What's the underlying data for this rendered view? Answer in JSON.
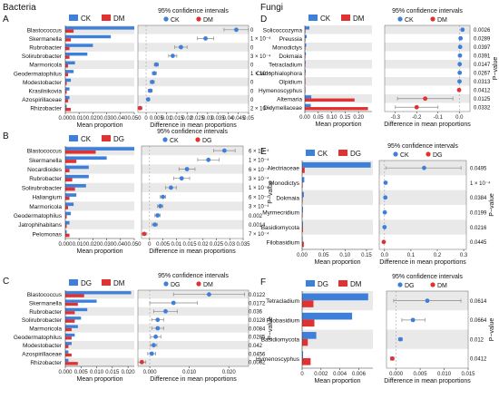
{
  "section_titles": {
    "bacteria": "Bacteria",
    "fungi": "Fungi"
  },
  "colors": {
    "blue": "#3d7fd9",
    "red": "#e03232",
    "stripe": "#e9e9e9",
    "ci": "#888888"
  },
  "chart_data": [
    {
      "id": "A",
      "type": "bar",
      "legend": [
        {
          "name": "CK",
          "color": "#3d7fd9"
        },
        {
          "name": "DM",
          "color": "#e03232"
        }
      ],
      "ci_title": "95% confidence intervals",
      "categories": [
        "Blastococcus",
        "Skermanella",
        "Rubrobacter",
        "Solirubrobacter",
        "Marmoricola",
        "Geodermatophilus",
        "Modestobacter",
        "Krasilnikovia",
        "Azospirillaceae",
        "Rhizobacter"
      ],
      "series": [
        {
          "name": "CK",
          "values": [
            0.05,
            0.033,
            0.02,
            0.016,
            0.007,
            0.006,
            0.004,
            0.003,
            0.003,
            0.001
          ]
        },
        {
          "name": "DM",
          "values": [
            0.006,
            0.004,
            0.003,
            0.003,
            0.002,
            0.002,
            0.001,
            0.001,
            0.002,
            0.004
          ]
        }
      ],
      "bar_xlim": [
        0,
        0.05
      ],
      "bar_ticks": [
        "0.000",
        "0.010",
        "0.020",
        "0.030",
        "0.040",
        "0.050"
      ],
      "bar_xlabel": "Mean proportion",
      "diff": [
        0.044,
        0.029,
        0.017,
        0.013,
        0.005,
        0.004,
        0.003,
        0.002,
        0.001,
        -0.003
      ],
      "ci_low": [
        0.038,
        0.025,
        0.014,
        0.011,
        0.004,
        0.003,
        0.002,
        0.001,
        0.0005,
        -0.004
      ],
      "ci_high": [
        0.05,
        0.033,
        0.02,
        0.015,
        0.006,
        0.005,
        0.004,
        0.003,
        0.0015,
        -0.002
      ],
      "diff_xlim": [
        -0.004,
        0.05
      ],
      "diff_ticks": [
        "0",
        "0.005",
        "0.01",
        "0.015",
        "0.02",
        "0.025",
        "0.03",
        "0.035",
        "0.04",
        "0.045",
        "0.05"
      ],
      "diff_xlabel": "Difference in mean proportions",
      "pvalues": [
        "0",
        "1 × 10⁻⁴",
        "0",
        "3 × 10⁻⁴",
        "0",
        "1 × 10⁻⁴",
        "0",
        "0",
        "0",
        "2 × 10⁻⁴"
      ],
      "pvalue_label": ""
    },
    {
      "id": "B",
      "type": "bar",
      "legend": [
        {
          "name": "CK",
          "color": "#3d7fd9"
        },
        {
          "name": "DG",
          "color": "#e03232"
        }
      ],
      "ci_title": "95% confidence intervals",
      "categories": [
        "Blastococcus",
        "Skermanella",
        "Nocardioides",
        "Rubrobacter",
        "Solirubrobacter",
        "Haliangium",
        "Marmoricola",
        "Geodermatophilus",
        "Jatrophihabitans",
        "Pelomonas"
      ],
      "series": [
        {
          "name": "CK",
          "values": [
            0.05,
            0.03,
            0.017,
            0.017,
            0.015,
            0.008,
            0.006,
            0.004,
            0.003,
            0.001
          ]
        },
        {
          "name": "DG",
          "values": [
            0.022,
            0.008,
            0.003,
            0.005,
            0.007,
            0.003,
            0.002,
            0.001,
            0.001,
            0.003
          ]
        }
      ],
      "bar_xlim": [
        0,
        0.05
      ],
      "bar_ticks": [
        "0.000",
        "0.010",
        "0.020",
        "0.030",
        "0.040",
        "0.050"
      ],
      "bar_xlabel": "Mean proportion",
      "diff": [
        0.028,
        0.022,
        0.014,
        0.012,
        0.008,
        0.005,
        0.004,
        0.003,
        0.002,
        -0.002
      ],
      "ci_low": [
        0.024,
        0.018,
        0.011,
        0.009,
        0.006,
        0.004,
        0.003,
        0.002,
        0.001,
        -0.003
      ],
      "ci_high": [
        0.032,
        0.026,
        0.017,
        0.015,
        0.01,
        0.006,
        0.005,
        0.004,
        0.003,
        -0.001
      ],
      "diff_xlim": [
        -0.003,
        0.035
      ],
      "diff_ticks": [
        "0",
        "0.005",
        "0.01",
        "0.015",
        "0.02",
        "0.025",
        "0.03",
        "0.035"
      ],
      "diff_xlabel": "Difference in mean proportions",
      "pvalues": [
        "6 × 10⁻⁴",
        "1 × 10⁻⁴",
        "6 × 10⁻⁴",
        "3 × 10⁻⁴",
        "1 × 10⁻⁴",
        "6 × 10⁻⁴",
        "3 × 10⁻⁴",
        "0.002",
        "0.0014",
        "7 × 10⁻⁴"
      ],
      "pvalue_label": "P−value"
    },
    {
      "id": "C",
      "type": "bar",
      "legend": [
        {
          "name": "DG",
          "color": "#3d7fd9"
        },
        {
          "name": "DM",
          "color": "#e03232"
        }
      ],
      "ci_title": "95% confidence intervals",
      "categories": [
        "Blastococcus",
        "Skermanella",
        "Rubrobacter",
        "Solirubrobacter",
        "Marmoricola",
        "Geodermatophilus",
        "Modestobacter",
        "Azospirillaceae",
        "Rhizobacter"
      ],
      "series": [
        {
          "name": "DG",
          "values": [
            0.021,
            0.01,
            0.007,
            0.005,
            0.004,
            0.003,
            0.002,
            0.001,
            0.001
          ]
        },
        {
          "name": "DM",
          "values": [
            0.006,
            0.004,
            0.003,
            0.003,
            0.002,
            0.002,
            0.001,
            0.002,
            0.004
          ]
        }
      ],
      "bar_xlim": [
        0,
        0.022
      ],
      "bar_ticks": [
        "0.000",
        "0.005",
        "0.010",
        "0.015",
        "0.020"
      ],
      "bar_xlabel": "Mean proportion",
      "diff": [
        0.015,
        0.006,
        0.004,
        0.002,
        0.002,
        0.0015,
        0.001,
        0.0005,
        -0.002
      ],
      "ci_low": [
        0.006,
        0.0,
        0.001,
        0.0005,
        0.0005,
        0.0002,
        0.0002,
        -0.0005,
        -0.003
      ],
      "ci_high": [
        0.024,
        0.012,
        0.007,
        0.0035,
        0.0035,
        0.0028,
        0.0018,
        0.0015,
        -0.001
      ],
      "diff_xlim": [
        -0.003,
        0.025
      ],
      "diff_ticks": [
        "0.000",
        "0.010",
        "0.020"
      ],
      "diff_xlabel": "Difference in mean proportions",
      "pvalues": [
        "0.0122",
        "0.0172",
        "0.036",
        "0.0128",
        "0.0084",
        "0.0285",
        "0.042",
        "0.0456",
        "0.0062"
      ],
      "pvalue_label": "P−value"
    },
    {
      "id": "D",
      "type": "bar",
      "legend": [
        {
          "name": "CK",
          "color": "#3d7fd9"
        },
        {
          "name": "DM",
          "color": "#e03232"
        }
      ],
      "ci_title": "95% confidence intervals",
      "categories": [
        "Solicoccozyma",
        "Preussia",
        "Monodictys",
        "Dokmaia",
        "Tetracladium",
        "Cladophialophora",
        "Olpidium",
        "Hymenoscyphus",
        "Alternaria",
        "Didymellaceae"
      ],
      "series": [
        {
          "name": "CK",
          "values": [
            0.017,
            0.007,
            0.005,
            0.004,
            0.003,
            0.003,
            0.002,
            0.001,
            0.024,
            0.022
          ]
        },
        {
          "name": "DM",
          "values": [
            0.001,
            0.001,
            0.001,
            0.001,
            0.001,
            0.001,
            0.001,
            0.002,
            0.185,
            0.235
          ]
        }
      ],
      "bar_xlim": [
        0,
        0.25
      ],
      "bar_ticks": [
        "0.00",
        "0.05",
        "0.10",
        "0.15",
        "0.20"
      ],
      "bar_xlabel": "Mean proportion",
      "diff": [
        0.015,
        0.006,
        0.004,
        0.003,
        0.002,
        0.002,
        0.001,
        -0.001,
        -0.16,
        -0.2
      ],
      "ci_low": [
        0.01,
        0.003,
        0.002,
        0.001,
        0.001,
        0.001,
        0.0,
        -0.002,
        -0.29,
        -0.3
      ],
      "ci_high": [
        0.02,
        0.009,
        0.006,
        0.005,
        0.004,
        0.003,
        0.002,
        0.0,
        -0.03,
        -0.1
      ],
      "diff_xlim": [
        -0.35,
        0.05
      ],
      "diff_ticks": [
        "-0.3",
        "-0.2",
        "-0.1",
        "0.0"
      ],
      "diff_xlabel": "Difference in mean proportions",
      "pvalues": [
        "0.0026",
        "0.0289",
        "0.0397",
        "0.0391",
        "0.0147",
        "0.0267",
        "0.0313",
        "0.0412",
        "0.0125",
        "0.0332"
      ],
      "pvalue_label": "P−value"
    },
    {
      "id": "E",
      "type": "bar",
      "legend": [
        {
          "name": "CK",
          "color": "#3d7fd9"
        },
        {
          "name": "DG",
          "color": "#e03232"
        }
      ],
      "ci_title": "95% confidence intervals",
      "categories": [
        "Nectriaceae",
        "Monodictys",
        "Dokmaia",
        "Myrmecridium",
        "Basidiomycota",
        "Filobasidium"
      ],
      "series": [
        {
          "name": "CK",
          "values": [
            0.16,
            0.005,
            0.004,
            0.002,
            0.002,
            0.001
          ]
        },
        {
          "name": "DG",
          "values": [
            0.006,
            0.001,
            0.001,
            0.001,
            0.002,
            0.004
          ]
        }
      ],
      "bar_xlim": [
        0,
        0.165
      ],
      "bar_ticks": [
        "0.00",
        "0.05",
        "0.10",
        "0.15"
      ],
      "bar_xlabel": "Mean proportion",
      "diff": [
        0.15,
        0.004,
        0.003,
        0.001,
        0.0,
        -0.003
      ],
      "ci_low": [
        0.005,
        0.002,
        0.001,
        0.0,
        -0.001,
        -0.005
      ],
      "ci_high": [
        0.29,
        0.006,
        0.005,
        0.002,
        0.001,
        -0.001
      ],
      "diff_xlim": [
        -0.02,
        0.31
      ],
      "diff_ticks": [
        "0.0",
        "0.1",
        "0.2",
        "0.3"
      ],
      "diff_xlabel": "Difference in mean proportions",
      "pvalues": [
        "0.0495",
        "1 × 10⁻⁴",
        "0.0384",
        "0.0199",
        "0.0216",
        "0.0445"
      ],
      "pvalue_label": "P−value"
    },
    {
      "id": "F",
      "type": "bar",
      "legend": [
        {
          "name": "DG",
          "color": "#3d7fd9"
        },
        {
          "name": "DM",
          "color": "#e03232"
        }
      ],
      "ci_title": "95% confidence intervals",
      "categories": [
        "Tetracladium",
        "Filobasidium",
        "Basidiomycota",
        "Hymenoscyphus"
      ],
      "series": [
        {
          "name": "DG",
          "values": [
            0.007,
            0.0053,
            0.0015,
            0.0001
          ]
        },
        {
          "name": "DM",
          "values": [
            0.0012,
            0.0013,
            0.0006,
            0.0009
          ]
        }
      ],
      "bar_xlim": [
        0,
        0.0075
      ],
      "bar_ticks": [
        "0",
        "0.002",
        "0.004",
        "0.006"
      ],
      "bar_xlabel": "Mean proportion",
      "diff": [
        0.0065,
        0.0035,
        0.0009,
        -0.0008
      ],
      "ci_low": [
        -0.0005,
        0.0012,
        0.0005,
        -0.0012
      ],
      "ci_high": [
        0.0135,
        0.006,
        0.0013,
        -0.0004
      ],
      "diff_xlim": [
        -0.002,
        0.015
      ],
      "diff_ticks": [
        "0.000",
        "0.005",
        "0.010",
        "0.015"
      ],
      "diff_xlabel": "Difference in mean proportions",
      "pvalues": [
        "0.0614",
        "0.0664",
        "0.012",
        "0.0412"
      ],
      "pvalue_label": "P−value"
    }
  ]
}
